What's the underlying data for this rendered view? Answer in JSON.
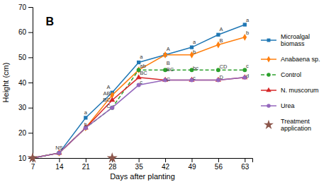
{
  "chart_data": {
    "type": "line",
    "xlabel": "Days after planting",
    "ylabel": "Height (cm)",
    "panel_label": "B",
    "x": [
      7,
      14,
      21,
      28,
      35,
      42,
      49,
      56,
      63
    ],
    "xlim": [
      7,
      65
    ],
    "xticks": [
      7,
      14,
      21,
      28,
      35,
      42,
      49,
      56,
      63
    ],
    "ylim": [
      10,
      70
    ],
    "yticks": [
      10,
      20,
      30,
      40,
      50,
      60,
      70
    ],
    "grid": false,
    "series": [
      {
        "name": "Microalgal\nbiomass",
        "marker": "square",
        "line_style": "solid",
        "values": [
          10,
          12,
          26,
          36,
          48,
          51,
          54,
          59,
          63
        ]
      },
      {
        "name": "Anabaena sp.",
        "marker": "diamond",
        "line_style": "solid",
        "values": [
          10,
          12,
          22,
          35,
          45,
          51,
          51,
          55,
          58
        ]
      },
      {
        "name": "Control",
        "marker": "circle",
        "line_style": "dashed",
        "values": [
          10,
          12,
          22,
          30,
          45,
          45,
          45,
          45,
          45
        ]
      },
      {
        "name": "N. muscorum",
        "marker": "triangle",
        "line_style": "solid",
        "values": [
          10,
          12,
          22,
          33,
          42,
          41,
          41,
          41,
          42
        ]
      },
      {
        "name": "Urea",
        "marker": "circle",
        "line_style": "solid",
        "values": [
          10,
          12,
          22,
          30,
          39,
          41,
          41,
          41,
          42
        ]
      },
      {
        "name": "Treatment\napplication",
        "type": "scatter",
        "marker": "star",
        "x": [
          7,
          28
        ],
        "values": [
          10,
          10
        ]
      }
    ],
    "annotations": [
      {
        "text": "NS",
        "x": 14,
        "y": 13.5
      },
      {
        "text": "a",
        "x": 21,
        "y": 27.5
      },
      {
        "text": "b",
        "x": 21,
        "y": 22.5
      },
      {
        "text": "A",
        "x": 27.5,
        "y": 37.5
      },
      {
        "text": "AB",
        "x": 27.5,
        "y": 35.0
      },
      {
        "text": "BC",
        "x": 27.5,
        "y": 32.5
      },
      {
        "text": "C",
        "x": 27.5,
        "y": 30.0
      },
      {
        "text": "a",
        "x": 35.3,
        "y": 49.5
      },
      {
        "text": "ab",
        "x": 35.3,
        "y": 46.0
      },
      {
        "text": "BC",
        "x": 35.3,
        "y": 43.0
      },
      {
        "text": "c",
        "x": 35.3,
        "y": 39.5
      },
      {
        "text": "A",
        "x": 42.3,
        "y": 52.5
      },
      {
        "text": "B",
        "x": 42.3,
        "y": 47.0
      },
      {
        "text": "BC",
        "x": 42.3,
        "y": 44.5
      },
      {
        "text": "C",
        "x": 42.3,
        "y": 40.5
      },
      {
        "text": "a",
        "x": 49.3,
        "y": 55.5
      },
      {
        "text": "b",
        "x": 49.3,
        "y": 51.5
      },
      {
        "text": "bc",
        "x": 49.3,
        "y": 45.0
      },
      {
        "text": "c",
        "x": 49.3,
        "y": 41.0
      },
      {
        "text": "A",
        "x": 56.3,
        "y": 60.5
      },
      {
        "text": "B",
        "x": 56.3,
        "y": 56.0
      },
      {
        "text": "CD",
        "x": 56.3,
        "y": 45.5
      },
      {
        "text": "D",
        "x": 56.3,
        "y": 41.5
      },
      {
        "text": "a",
        "x": 63.3,
        "y": 64.0
      },
      {
        "text": "b",
        "x": 63.3,
        "y": 59.0
      },
      {
        "text": "c",
        "x": 63.3,
        "y": 46.0
      },
      {
        "text": "d",
        "x": 63.3,
        "y": 42.0
      }
    ]
  }
}
